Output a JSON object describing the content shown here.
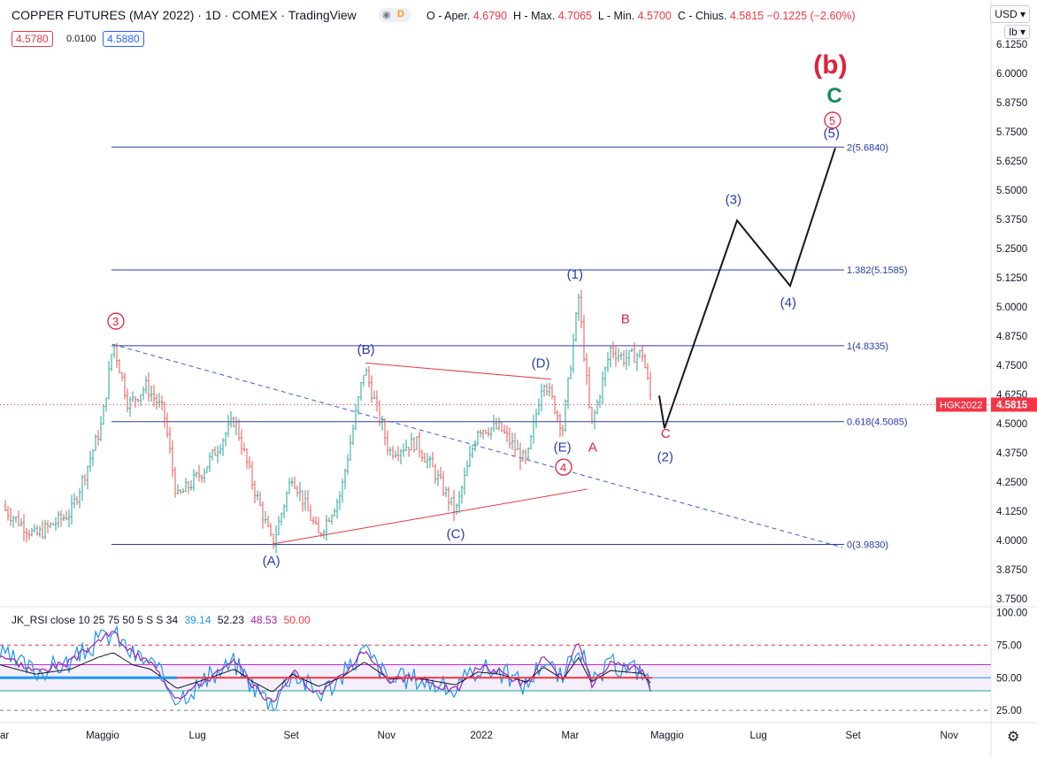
{
  "header": {
    "title": "COPPER FUTURES (MAY 2022) · 1D · COMEX · TradingView",
    "delayed_badge": "D",
    "open_label": "O - Aper.",
    "open_value": "4.6790",
    "high_label": "H - Max.",
    "high_value": "4.7065",
    "low_label": "L - Min.",
    "low_value": "4.5700",
    "close_label": "C - Chius.",
    "close_value": "4.5815",
    "change": "−0.1225 (−2.60%)",
    "bid": "4.5780",
    "spread": "0.0100",
    "ask": "4.5880"
  },
  "controls": {
    "currency": "USD",
    "unit": "lb"
  },
  "chart_data": [
    {
      "type": "candlestick",
      "symbol": "HGK2022",
      "last_price": "4.5815",
      "price_axis_ticks": [
        "6.1250",
        "6.0000",
        "5.8750",
        "5.7500",
        "5.6250",
        "5.5000",
        "5.3750",
        "5.2500",
        "5.1250",
        "5.0000",
        "4.8750",
        "4.7500",
        "4.6250",
        "4.5000",
        "4.3750",
        "4.2500",
        "4.1250",
        "4.0000",
        "3.8750",
        "3.7500"
      ],
      "time_axis_labels": [
        "ar",
        "Maggio",
        "Lug",
        "Set",
        "Nov",
        "2022",
        "Mar",
        "Maggio",
        "Lug",
        "Set",
        "Nov"
      ],
      "ylim": [
        3.72,
        6.2
      ],
      "price_path": [
        {
          "t": 0,
          "v": 4.15
        },
        {
          "t": 40,
          "v": 4.02
        },
        {
          "t": 80,
          "v": 4.12
        },
        {
          "t": 100,
          "v": 4.33
        },
        {
          "t": 115,
          "v": 4.5
        },
        {
          "t": 128,
          "v": 4.85
        },
        {
          "t": 145,
          "v": 4.58
        },
        {
          "t": 165,
          "v": 4.66
        },
        {
          "t": 185,
          "v": 4.55
        },
        {
          "t": 200,
          "v": 4.18
        },
        {
          "t": 230,
          "v": 4.3
        },
        {
          "t": 265,
          "v": 4.52
        },
        {
          "t": 285,
          "v": 4.25
        },
        {
          "t": 308,
          "v": 3.98
        },
        {
          "t": 330,
          "v": 4.28
        },
        {
          "t": 360,
          "v": 4.02
        },
        {
          "t": 385,
          "v": 4.2
        },
        {
          "t": 412,
          "v": 4.74
        },
        {
          "t": 440,
          "v": 4.38
        },
        {
          "t": 470,
          "v": 4.42
        },
        {
          "t": 490,
          "v": 4.3
        },
        {
          "t": 515,
          "v": 4.12
        },
        {
          "t": 540,
          "v": 4.48
        },
        {
          "t": 565,
          "v": 4.48
        },
        {
          "t": 595,
          "v": 4.33
        },
        {
          "t": 614,
          "v": 4.7
        },
        {
          "t": 636,
          "v": 4.48
        },
        {
          "t": 654,
          "v": 5.04
        },
        {
          "t": 668,
          "v": 4.48
        },
        {
          "t": 690,
          "v": 4.82
        },
        {
          "t": 705,
          "v": 4.78
        },
        {
          "t": 726,
          "v": 4.8
        },
        {
          "t": 737,
          "v": 4.58
        }
      ],
      "fibonacci": [
        {
          "label": "2(5.6840)",
          "value": 5.684
        },
        {
          "label": "1.382(5.1585)",
          "value": 5.1585
        },
        {
          "label": "1(4.8335)",
          "value": 4.8335
        },
        {
          "label": "0.618(4.5085)",
          "value": 4.5085
        },
        {
          "label": "0(3.9830)",
          "value": 3.983
        }
      ],
      "projection": [
        {
          "t": 745,
          "v": 4.62
        },
        {
          "t": 751,
          "v": 4.48
        },
        {
          "t": 833,
          "v": 5.37
        },
        {
          "t": 893,
          "v": 5.09
        },
        {
          "t": 944,
          "v": 5.68
        }
      ],
      "wave_labels": [
        {
          "text": "(b)",
          "t": 944,
          "v": 6.0,
          "color": "#e0223c"
        },
        {
          "text": "C",
          "t": 941,
          "v": 5.875,
          "color": "#138c5d"
        },
        {
          "text": "5",
          "t": 941,
          "v": 5.78,
          "color": "#e0223c",
          "circled": true
        },
        {
          "text": "(5)",
          "t": 943,
          "v": 5.725,
          "color": "#2b3bb0"
        },
        {
          "text": "(3)",
          "t": 832,
          "v": 5.44,
          "color": "#2b3bb0"
        },
        {
          "text": "(4)",
          "t": 894,
          "v": 5.0,
          "color": "#2b3bb0"
        },
        {
          "text": "(1)",
          "t": 653,
          "v": 5.12,
          "color": "#2b3bb0"
        },
        {
          "text": "B",
          "t": 706,
          "v": 4.93,
          "color": "#e0223c"
        },
        {
          "text": "3",
          "t": 131,
          "v": 4.92,
          "color": "#e0223c",
          "circled": true
        },
        {
          "text": "(B)",
          "t": 416,
          "v": 4.8,
          "color": "#2b3bb0"
        },
        {
          "text": "(D)",
          "t": 613,
          "v": 4.74,
          "color": "#2b3bb0"
        },
        {
          "text": "A",
          "t": 669,
          "v": 4.38,
          "color": "#e0223c"
        },
        {
          "text": "C",
          "t": 751,
          "v": 4.44,
          "color": "#e0223c"
        },
        {
          "text": "(2)",
          "t": 755,
          "v": 4.34,
          "color": "#2b3bb0"
        },
        {
          "text": "(E)",
          "t": 638,
          "v": 4.38,
          "color": "#2b3bb0"
        },
        {
          "text": "4",
          "t": 637,
          "v": 4.295,
          "color": "#e0223c",
          "circled": true
        },
        {
          "text": "(C)",
          "t": 517,
          "v": 4.01,
          "color": "#2b3bb0"
        },
        {
          "text": "(A)",
          "t": 309,
          "v": 3.895,
          "color": "#2b3bb0"
        }
      ]
    },
    {
      "type": "line",
      "indicator": "JK_RSI",
      "legend": "JK_RSI close 10 25 75 50 5 S S 34",
      "legend_values": [
        {
          "text": "39.14",
          "color": "#2196f3"
        },
        {
          "text": "52.23",
          "color": "#131722"
        },
        {
          "text": "48.53",
          "color": "#9c27b0"
        },
        {
          "text": "50.00",
          "color": "#f23645"
        }
      ],
      "axis_ticks": [
        "100.00",
        "75.00",
        "50.00",
        "25.00"
      ],
      "ylim": [
        17,
        103
      ],
      "levels": [
        75,
        60,
        50,
        40,
        25
      ],
      "rsi_path": [
        {
          "t": 0,
          "v": 68
        },
        {
          "t": 40,
          "v": 55
        },
        {
          "t": 80,
          "v": 62
        },
        {
          "t": 110,
          "v": 78
        },
        {
          "t": 128,
          "v": 85
        },
        {
          "t": 150,
          "v": 68
        },
        {
          "t": 170,
          "v": 62
        },
        {
          "t": 200,
          "v": 35
        },
        {
          "t": 230,
          "v": 47
        },
        {
          "t": 265,
          "v": 62
        },
        {
          "t": 285,
          "v": 45
        },
        {
          "t": 308,
          "v": 30
        },
        {
          "t": 330,
          "v": 55
        },
        {
          "t": 360,
          "v": 38
        },
        {
          "t": 385,
          "v": 50
        },
        {
          "t": 412,
          "v": 72
        },
        {
          "t": 440,
          "v": 48
        },
        {
          "t": 470,
          "v": 50
        },
        {
          "t": 515,
          "v": 40
        },
        {
          "t": 540,
          "v": 58
        },
        {
          "t": 565,
          "v": 55
        },
        {
          "t": 595,
          "v": 44
        },
        {
          "t": 614,
          "v": 65
        },
        {
          "t": 636,
          "v": 48
        },
        {
          "t": 654,
          "v": 78
        },
        {
          "t": 668,
          "v": 44
        },
        {
          "t": 690,
          "v": 60
        },
        {
          "t": 726,
          "v": 56
        },
        {
          "t": 737,
          "v": 40
        }
      ]
    }
  ],
  "colors": {
    "up": "#26a69a",
    "down": "#ef5350",
    "fib": "#2b3bb0",
    "trend": "#e5393f",
    "last_price_bg": "#f23645",
    "grid": "#f0f3fa"
  }
}
